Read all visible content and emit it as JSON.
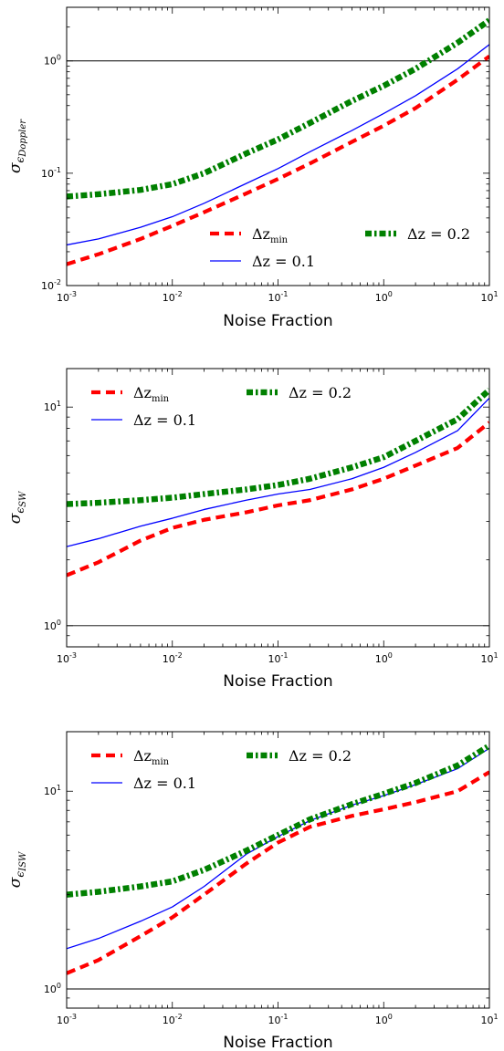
{
  "colors": {
    "red": "#ff0000",
    "blue": "#0000ff",
    "green": "#008000",
    "axis": "#000000"
  },
  "chart_data": [
    {
      "type": "line",
      "xscale": "log",
      "yscale": "log",
      "xlim": [
        0.001,
        10
      ],
      "ylim": [
        0.01,
        3
      ],
      "xlabel": "Noise Fraction",
      "ylabel": {
        "symbol": "σ",
        "sub": "ϵ",
        "subsub": "Doppler"
      },
      "xticks": [
        0.001,
        0.01,
        0.1,
        1,
        10
      ],
      "xtick_labels": [
        [
          "10",
          "-3"
        ],
        [
          "10",
          "-2"
        ],
        [
          "10",
          "-1"
        ],
        [
          "10",
          "0"
        ],
        [
          "10",
          "1"
        ]
      ],
      "yticks": [
        0.01,
        0.1,
        1
      ],
      "ytick_labels": [
        [
          "10",
          "-2"
        ],
        [
          "10",
          "-1"
        ],
        [
          "10",
          "0"
        ]
      ],
      "reference_line": 1,
      "legend": {
        "placement": "lower-right"
      },
      "series": [
        {
          "label": "Δz",
          "label_sub": "min",
          "color": "#ff0000",
          "style": "dashed",
          "x": [
            0.001,
            0.002,
            0.005,
            0.01,
            0.02,
            0.05,
            0.1,
            0.2,
            0.5,
            1,
            2,
            5,
            10
          ],
          "y": [
            0.0155,
            0.019,
            0.026,
            0.034,
            0.045,
            0.066,
            0.089,
            0.122,
            0.19,
            0.265,
            0.38,
            0.68,
            1.1
          ]
        },
        {
          "label": "Δz = 0.1",
          "color": "#0000ff",
          "style": "solid",
          "x": [
            0.001,
            0.002,
            0.005,
            0.01,
            0.02,
            0.05,
            0.1,
            0.2,
            0.5,
            1,
            2,
            5,
            10
          ],
          "y": [
            0.023,
            0.026,
            0.033,
            0.041,
            0.054,
            0.081,
            0.11,
            0.155,
            0.24,
            0.34,
            0.49,
            0.85,
            1.4
          ]
        },
        {
          "label": "Δz = 0.2",
          "color": "#008000",
          "style": "dashdot",
          "x": [
            0.001,
            0.002,
            0.005,
            0.01,
            0.02,
            0.05,
            0.1,
            0.2,
            0.5,
            1,
            2,
            5,
            10
          ],
          "y": [
            0.062,
            0.065,
            0.071,
            0.08,
            0.1,
            0.15,
            0.2,
            0.28,
            0.44,
            0.6,
            0.85,
            1.45,
            2.3
          ]
        }
      ]
    },
    {
      "type": "line",
      "xscale": "log",
      "yscale": "log",
      "xlim": [
        0.001,
        10
      ],
      "ylim": [
        0.8,
        15
      ],
      "xlabel": "Noise Fraction",
      "ylabel": {
        "symbol": "σ",
        "sub": "ϵ",
        "subsub": "SW"
      },
      "xticks": [
        0.001,
        0.01,
        0.1,
        1,
        10
      ],
      "xtick_labels": [
        [
          "10",
          "-3"
        ],
        [
          "10",
          "-2"
        ],
        [
          "10",
          "-1"
        ],
        [
          "10",
          "0"
        ],
        [
          "10",
          "1"
        ]
      ],
      "yticks": [
        1,
        10
      ],
      "ytick_labels": [
        [
          "10",
          "0"
        ],
        [
          "10",
          "1"
        ]
      ],
      "reference_line": 1,
      "legend": {
        "placement": "upper-left"
      },
      "series": [
        {
          "label": "Δz",
          "label_sub": "min",
          "color": "#ff0000",
          "style": "dashed",
          "x": [
            0.001,
            0.002,
            0.005,
            0.01,
            0.02,
            0.05,
            0.1,
            0.2,
            0.5,
            1,
            2,
            5,
            10
          ],
          "y": [
            1.7,
            1.95,
            2.45,
            2.8,
            3.05,
            3.3,
            3.55,
            3.75,
            4.2,
            4.7,
            5.4,
            6.5,
            8.5
          ]
        },
        {
          "label": "Δz = 0.1",
          "color": "#0000ff",
          "style": "solid",
          "x": [
            0.001,
            0.002,
            0.005,
            0.01,
            0.02,
            0.05,
            0.1,
            0.2,
            0.5,
            1,
            2,
            5,
            10
          ],
          "y": [
            2.3,
            2.5,
            2.85,
            3.1,
            3.4,
            3.75,
            4.0,
            4.2,
            4.7,
            5.3,
            6.2,
            7.8,
            11.0
          ]
        },
        {
          "label": "Δz = 0.2",
          "color": "#008000",
          "style": "dashdot",
          "x": [
            0.001,
            0.002,
            0.005,
            0.01,
            0.02,
            0.05,
            0.1,
            0.2,
            0.5,
            1,
            2,
            5,
            10
          ],
          "y": [
            3.6,
            3.65,
            3.75,
            3.85,
            4.0,
            4.2,
            4.4,
            4.7,
            5.3,
            5.9,
            7.0,
            8.8,
            12.0
          ]
        }
      ]
    },
    {
      "type": "line",
      "xscale": "log",
      "yscale": "log",
      "xlim": [
        0.001,
        10
      ],
      "ylim": [
        0.8,
        20
      ],
      "xlabel": "Noise Fraction",
      "ylabel": {
        "symbol": "σ",
        "sub": "ϵ",
        "subsub": "ISW"
      },
      "xticks": [
        0.001,
        0.01,
        0.1,
        1,
        10
      ],
      "xtick_labels": [
        [
          "10",
          "-3"
        ],
        [
          "10",
          "-2"
        ],
        [
          "10",
          "-1"
        ],
        [
          "10",
          "0"
        ],
        [
          "10",
          "1"
        ]
      ],
      "yticks": [
        1,
        10
      ],
      "ytick_labels": [
        [
          "10",
          "0"
        ],
        [
          "10",
          "1"
        ]
      ],
      "reference_line": 1,
      "legend": {
        "placement": "upper-left"
      },
      "series": [
        {
          "label": "Δz",
          "label_sub": "min",
          "color": "#ff0000",
          "style": "dashed",
          "x": [
            0.001,
            0.002,
            0.005,
            0.01,
            0.02,
            0.05,
            0.1,
            0.2,
            0.5,
            1,
            2,
            5,
            10
          ],
          "y": [
            1.2,
            1.4,
            1.85,
            2.3,
            3.0,
            4.3,
            5.5,
            6.6,
            7.5,
            8.1,
            8.8,
            10.0,
            12.5
          ]
        },
        {
          "label": "Δz = 0.1",
          "color": "#0000ff",
          "style": "solid",
          "x": [
            0.001,
            0.002,
            0.005,
            0.01,
            0.02,
            0.05,
            0.1,
            0.2,
            0.5,
            1,
            2,
            5,
            10
          ],
          "y": [
            1.6,
            1.8,
            2.2,
            2.6,
            3.3,
            4.8,
            5.9,
            7.1,
            8.5,
            9.5,
            10.8,
            13.0,
            16.5
          ]
        },
        {
          "label": "Δz = 0.2",
          "color": "#008000",
          "style": "dashdot",
          "x": [
            0.001,
            0.002,
            0.005,
            0.01,
            0.02,
            0.05,
            0.1,
            0.2,
            0.5,
            1,
            2,
            5,
            10
          ],
          "y": [
            3.0,
            3.1,
            3.3,
            3.5,
            4.0,
            5.0,
            6.0,
            7.2,
            8.6,
            9.7,
            11.0,
            13.5,
            17.0
          ]
        }
      ]
    }
  ]
}
